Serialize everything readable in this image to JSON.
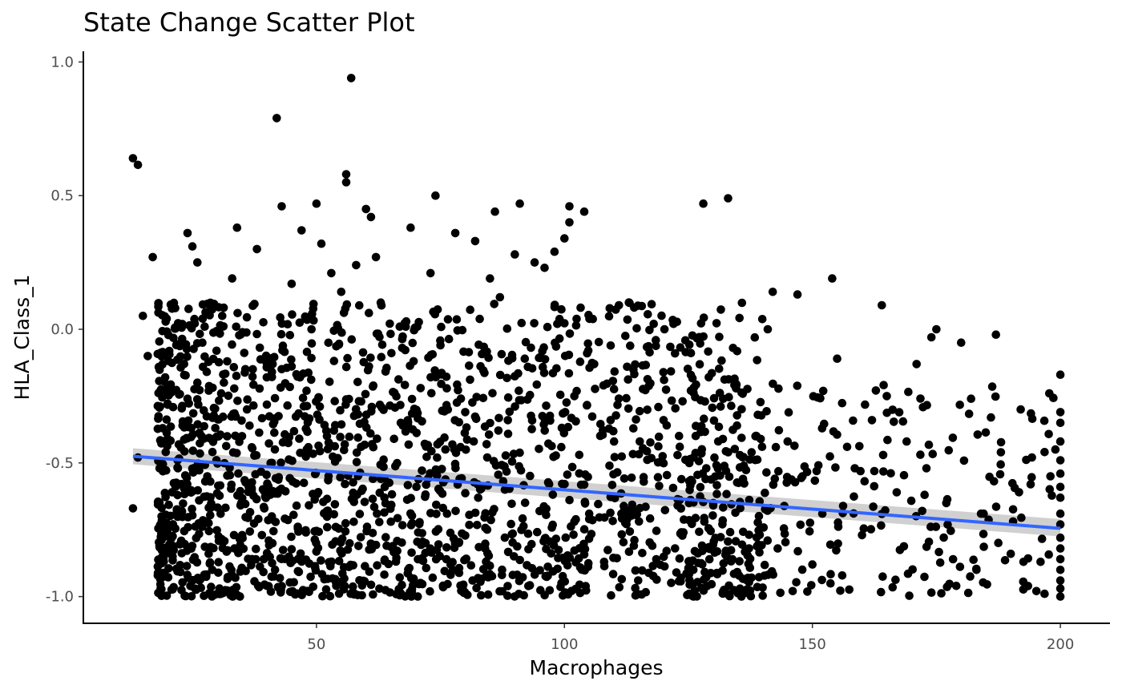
{
  "chart_data": {
    "type": "scatter",
    "title": "State Change Scatter Plot",
    "xlabel": "Macrophages",
    "ylabel": "HLA_Class_1",
    "xlim": [
      3,
      210
    ],
    "ylim": [
      -1.1,
      1.04
    ],
    "xticks": [
      50,
      100,
      150,
      200
    ],
    "xtick_labels": [
      "50",
      "100",
      "150",
      "200"
    ],
    "yticks": [
      -1.0,
      -0.5,
      0.0,
      0.5,
      1.0
    ],
    "ytick_labels": [
      "-1.0",
      "-0.5",
      "0.0",
      "0.5",
      "1.0"
    ],
    "grid": false,
    "point_color": "#000000",
    "trend_line": {
      "method": "linear",
      "color": "#3366ff",
      "band_color": "#c8c8c8",
      "x": [
        13,
        200
      ],
      "y": [
        -0.475,
        -0.745
      ],
      "ci_lower": [
        -0.505,
        -0.775
      ],
      "ci_upper": [
        -0.445,
        -0.71
      ]
    },
    "points": [
      [
        13,
        0.64
      ],
      [
        14,
        0.615
      ],
      [
        15,
        0.05
      ],
      [
        16,
        -0.1
      ],
      [
        17,
        0.27
      ],
      [
        14,
        -0.48
      ],
      [
        13,
        -0.67
      ],
      [
        19,
        -0.37
      ],
      [
        20,
        -0.41
      ],
      [
        21,
        -0.81
      ],
      [
        21,
        -0.85
      ],
      [
        22,
        -0.49
      ],
      [
        22,
        -0.62
      ],
      [
        23,
        -0.36
      ],
      [
        24,
        -0.26
      ],
      [
        24,
        0.36
      ],
      [
        25,
        0.31
      ],
      [
        26,
        0.25
      ],
      [
        26,
        -0.2
      ],
      [
        27,
        -0.05
      ],
      [
        28,
        -0.55
      ],
      [
        28,
        -0.72
      ],
      [
        29,
        -0.9
      ],
      [
        30,
        -0.99
      ],
      [
        31,
        0.05
      ],
      [
        32,
        -0.12
      ],
      [
        33,
        0.19
      ],
      [
        34,
        0.38
      ],
      [
        35,
        -0.4
      ],
      [
        36,
        -0.3
      ],
      [
        37,
        -0.86
      ],
      [
        38,
        0.3
      ],
      [
        39,
        -0.77
      ],
      [
        40,
        -0.96
      ],
      [
        41,
        -0.5
      ],
      [
        42,
        0.79
      ],
      [
        43,
        0.46
      ],
      [
        45,
        0.17
      ],
      [
        46,
        -0.66
      ],
      [
        47,
        0.37
      ],
      [
        48,
        -0.23
      ],
      [
        49,
        0.0
      ],
      [
        50,
        0.47
      ],
      [
        51,
        0.32
      ],
      [
        52,
        -0.38
      ],
      [
        53,
        0.21
      ],
      [
        54,
        -0.96
      ],
      [
        55,
        0.14
      ],
      [
        56,
        0.58
      ],
      [
        56,
        0.55
      ],
      [
        57,
        0.94
      ],
      [
        58,
        0.24
      ],
      [
        59,
        -0.44
      ],
      [
        60,
        0.45
      ],
      [
        61,
        0.42
      ],
      [
        62,
        0.27
      ],
      [
        63,
        -0.56
      ],
      [
        65,
        -0.72
      ],
      [
        67,
        -0.35
      ],
      [
        68,
        0.01
      ],
      [
        69,
        0.38
      ],
      [
        71,
        -0.22
      ],
      [
        72,
        -0.8
      ],
      [
        73,
        0.21
      ],
      [
        74,
        0.5
      ],
      [
        75,
        -0.06
      ],
      [
        76,
        -0.45
      ],
      [
        78,
        0.36
      ],
      [
        80,
        -0.31
      ],
      [
        82,
        0.33
      ],
      [
        84,
        -0.82
      ],
      [
        85,
        0.19
      ],
      [
        86,
        0.44
      ],
      [
        87,
        0.12
      ],
      [
        88,
        -0.6
      ],
      [
        90,
        0.28
      ],
      [
        91,
        0.47
      ],
      [
        92,
        -0.11
      ],
      [
        94,
        0.25
      ],
      [
        95,
        -0.68
      ],
      [
        96,
        0.23
      ],
      [
        98,
        0.29
      ],
      [
        100,
        0.34
      ],
      [
        101,
        0.4
      ],
      [
        101,
        0.46
      ],
      [
        102,
        -0.25
      ],
      [
        103,
        -0.47
      ],
      [
        104,
        0.44
      ],
      [
        105,
        -0.69
      ],
      [
        106,
        -0.13
      ],
      [
        108,
        -0.87
      ],
      [
        110,
        -0.42
      ],
      [
        111,
        0.09
      ],
      [
        113,
        0.1
      ],
      [
        114,
        -0.81
      ],
      [
        116,
        -0.57
      ],
      [
        118,
        0.02
      ],
      [
        120,
        -0.34
      ],
      [
        122,
        0.02
      ],
      [
        124,
        -0.76
      ],
      [
        126,
        -0.9
      ],
      [
        128,
        0.47
      ],
      [
        130,
        -0.65
      ],
      [
        132,
        -0.26
      ],
      [
        133,
        0.49
      ],
      [
        134,
        -0.07
      ],
      [
        136,
        -0.56
      ],
      [
        137,
        -0.93
      ],
      [
        139,
        -0.32
      ],
      [
        141,
        0.0
      ],
      [
        142,
        0.14
      ],
      [
        143,
        -0.82
      ],
      [
        145,
        -0.42
      ],
      [
        147,
        0.13
      ],
      [
        148,
        -0.55
      ],
      [
        150,
        -0.88
      ],
      [
        152,
        -0.69
      ],
      [
        154,
        0.19
      ],
      [
        155,
        -0.11
      ],
      [
        157,
        -0.44
      ],
      [
        160,
        -0.77
      ],
      [
        162,
        -0.34
      ],
      [
        164,
        0.09
      ],
      [
        165,
        -0.25
      ],
      [
        167,
        -0.61
      ],
      [
        169,
        -0.42
      ],
      [
        171,
        -0.13
      ],
      [
        173,
        -0.52
      ],
      [
        174,
        -0.03
      ],
      [
        175,
        0.0
      ],
      [
        177,
        -0.65
      ],
      [
        179,
        -0.96
      ],
      [
        180,
        -0.05
      ],
      [
        182,
        -0.26
      ],
      [
        184,
        -0.69
      ],
      [
        186,
        -0.33
      ],
      [
        187,
        -0.02
      ],
      [
        188,
        -0.46
      ],
      [
        190,
        -0.84
      ],
      [
        192,
        -0.3
      ],
      [
        194,
        -0.58
      ],
      [
        196,
        -0.87
      ],
      [
        198,
        -0.55
      ],
      [
        199,
        -0.45
      ],
      [
        200,
        -0.17
      ],
      [
        200,
        -0.31
      ],
      [
        200,
        -0.35
      ],
      [
        200,
        -0.42
      ],
      [
        200,
        -0.49
      ],
      [
        200,
        -0.54
      ],
      [
        200,
        -0.59
      ],
      [
        200,
        -0.63
      ],
      [
        200,
        -0.69
      ],
      [
        200,
        -0.73
      ],
      [
        200,
        -0.78
      ],
      [
        200,
        -0.82
      ],
      [
        200,
        -0.86
      ],
      [
        200,
        -0.9
      ],
      [
        200,
        -0.94
      ],
      [
        200,
        -0.97
      ],
      [
        200,
        -1.0
      ]
    ],
    "dense_cloud": {
      "n": 1700,
      "x_range": [
        18,
        140
      ],
      "x_shape": 1.4,
      "y_range": [
        -1.0,
        0.1
      ],
      "y_shape": 1.3,
      "seed": 7
    },
    "sparse_cloud": {
      "n": 280,
      "x_range": [
        125,
        199
      ],
      "x_shape": 1.6,
      "y_range": [
        -1.0,
        -0.2
      ],
      "y_shape": 1.2,
      "seed": 11
    }
  }
}
